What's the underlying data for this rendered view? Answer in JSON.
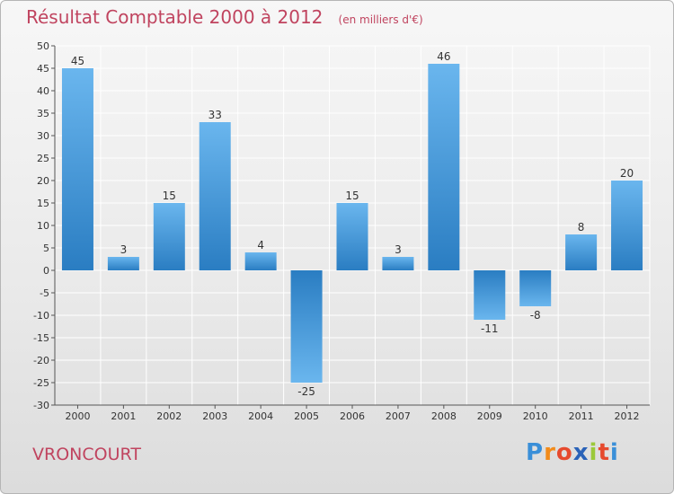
{
  "title": {
    "main": "Résultat Comptable 2000 à 2012",
    "unit": "(en milliers d'€)"
  },
  "city": "VRONCOURT",
  "brand": {
    "text": "Proxiti",
    "letters": [
      "P",
      "r",
      "o",
      "x",
      "i",
      "t",
      "i"
    ],
    "colors": [
      "#3a8fd8",
      "#f28b1a",
      "#e64a2e",
      "#2a62b8",
      "#9bc93a",
      "#e64a2e",
      "#3a8fd8"
    ]
  },
  "colors": {
    "bar_light": "#6ab6ee",
    "bar_dark": "#2a7dc2",
    "grid": "#ffffff",
    "axis": "#555555",
    "title": "#c0445f"
  },
  "chart_data": {
    "type": "bar",
    "title": "Résultat Comptable 2000 à 2012",
    "subtitle": "(en milliers d'€)",
    "xlabel": "",
    "ylabel": "",
    "categories": [
      "2000",
      "2001",
      "2002",
      "2003",
      "2004",
      "2005",
      "2006",
      "2007",
      "2008",
      "2009",
      "2010",
      "2011",
      "2012"
    ],
    "values": [
      45,
      3,
      15,
      33,
      4,
      -25,
      15,
      3,
      46,
      -11,
      -8,
      8,
      20
    ],
    "labels": [
      "45",
      "3",
      "15",
      "33",
      "4",
      "-25",
      "15",
      "3",
      "46",
      "-11",
      "-8",
      "8",
      "20"
    ],
    "ylim": [
      -30,
      50
    ],
    "yticks": [
      50,
      45,
      40,
      35,
      30,
      25,
      20,
      15,
      10,
      5,
      0,
      -5,
      -10,
      -15,
      -20,
      -25,
      -30
    ],
    "grid": true,
    "legend": "none"
  }
}
